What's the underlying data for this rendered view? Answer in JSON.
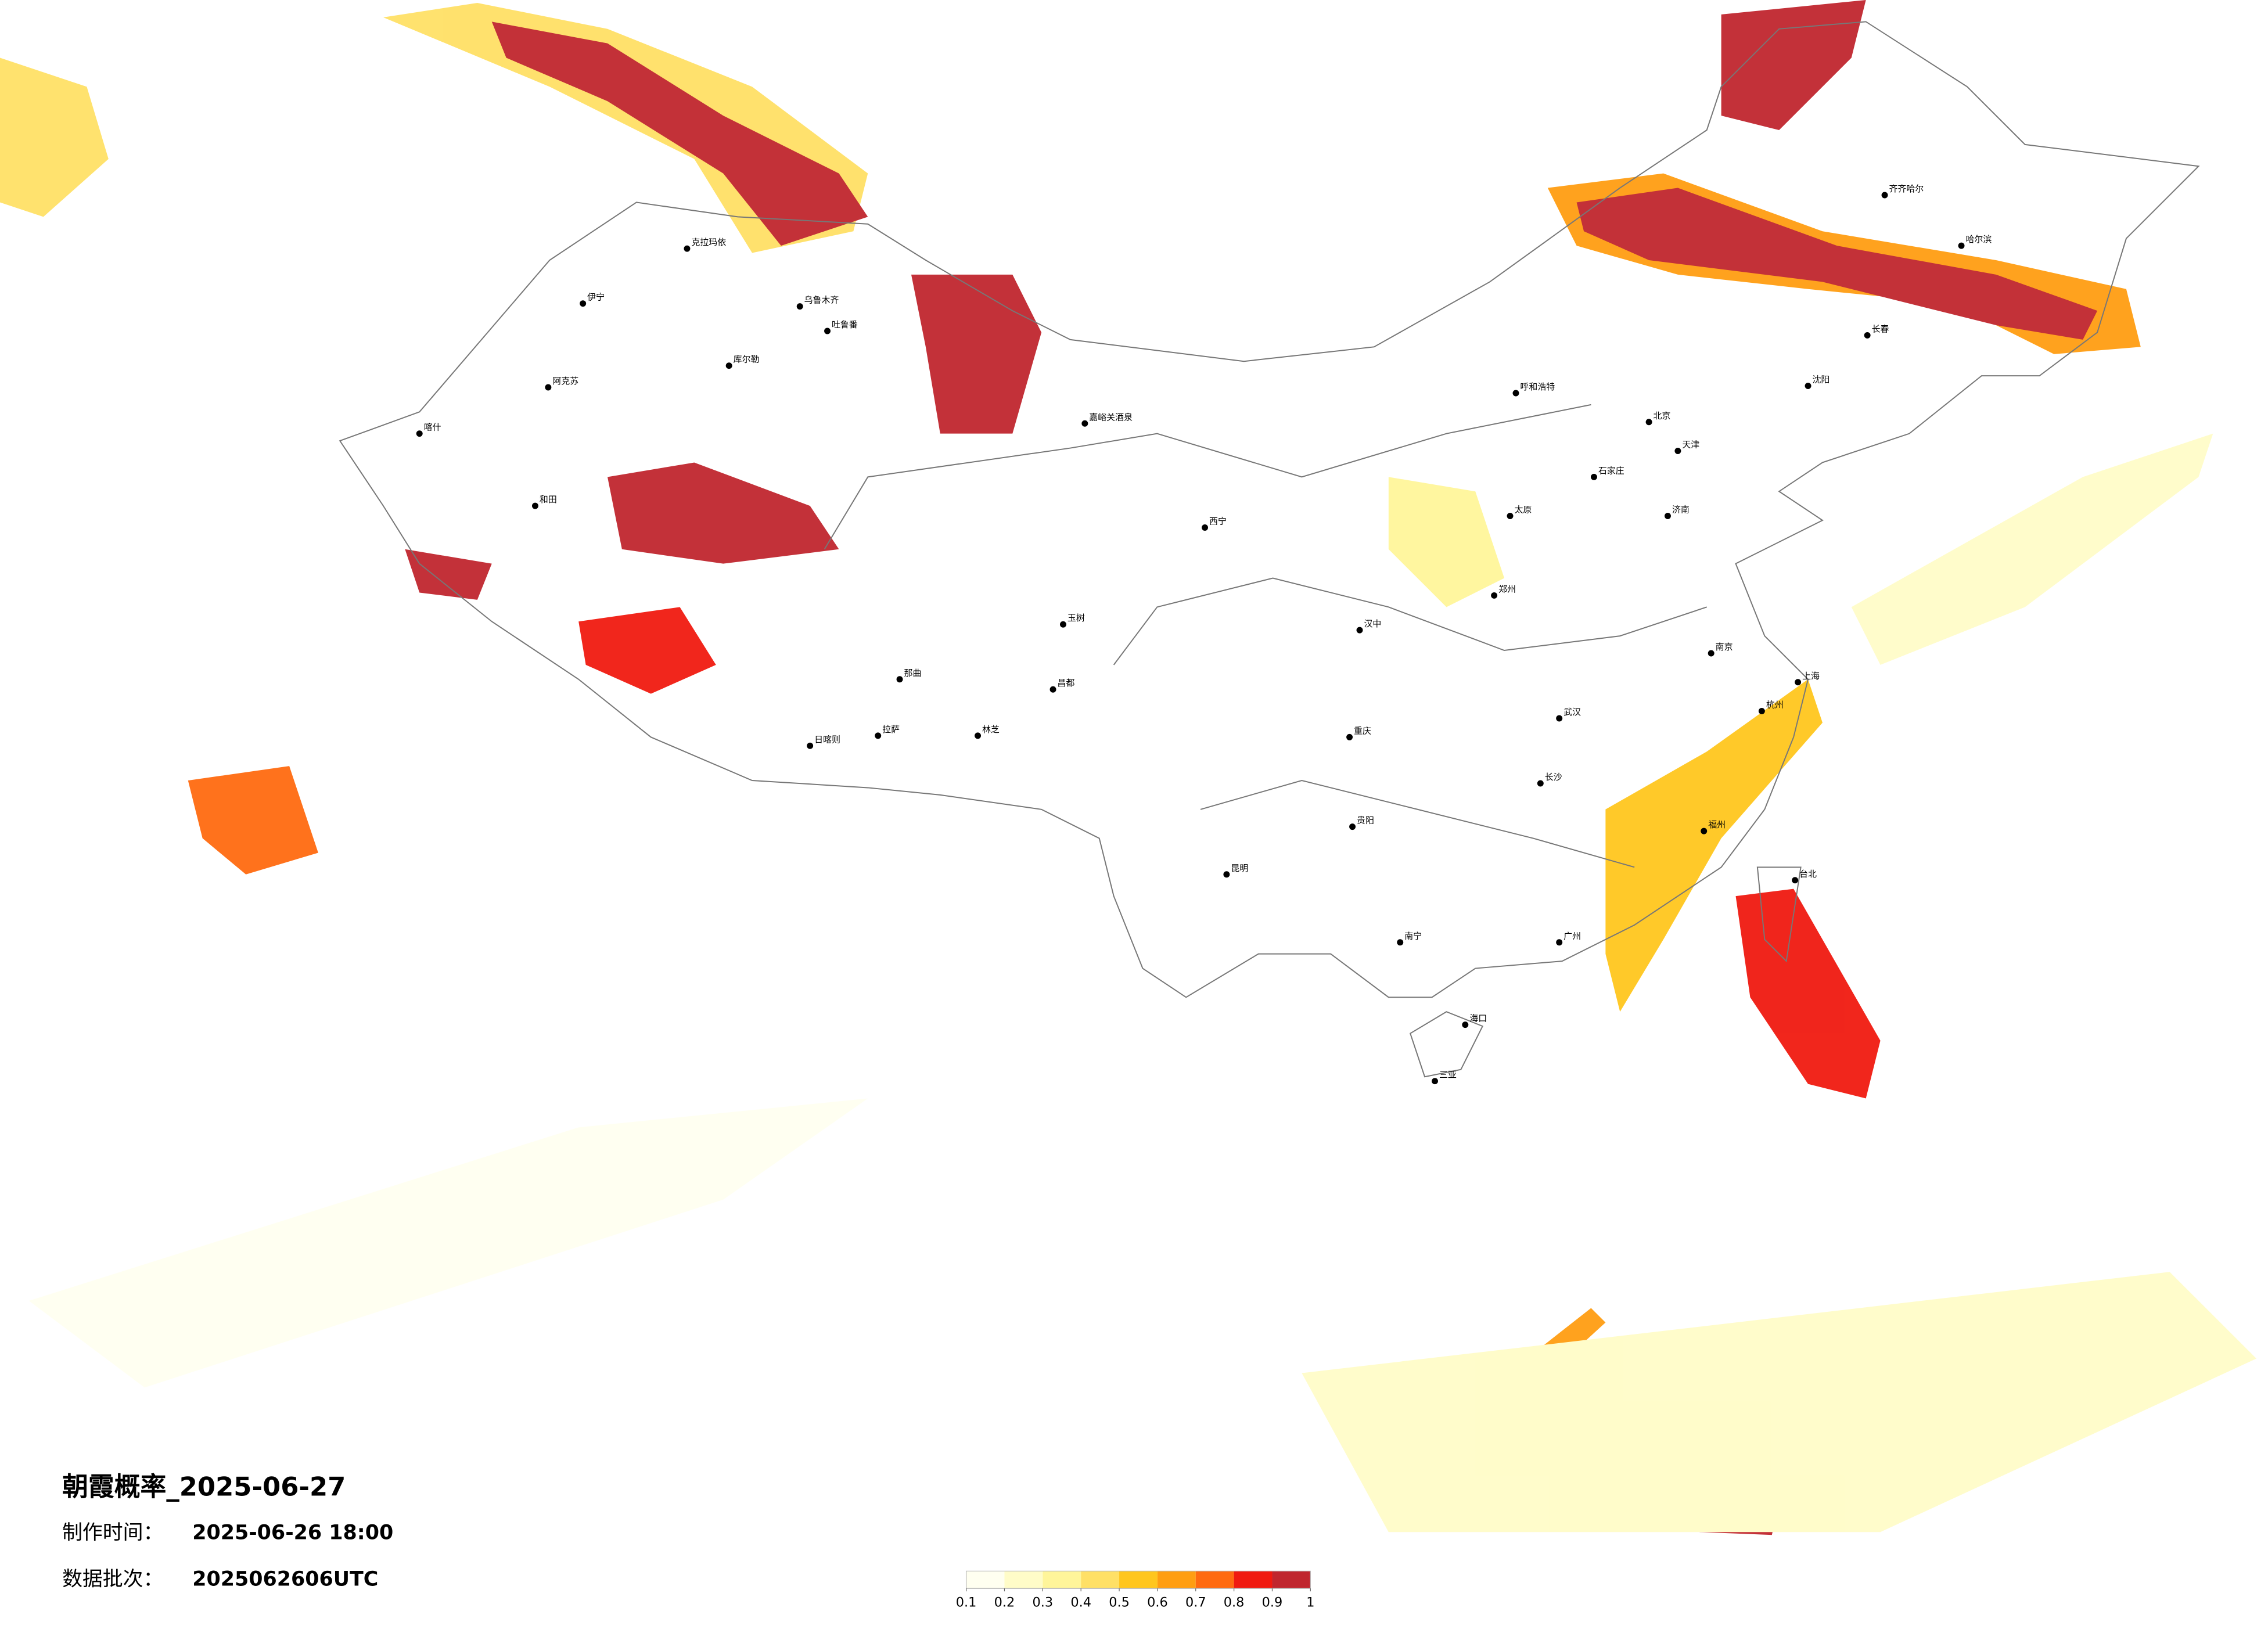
{
  "header": {
    "title": "朝霞概率_2025-06-27",
    "made_label": "制作时间：",
    "made_value": "2025-06-26 18:00",
    "batch_label": "数据批次：",
    "batch_value": "2025062606UTC"
  },
  "legend": {
    "ticks": [
      0.1,
      0.2,
      0.3,
      0.4,
      0.5,
      0.6,
      0.7,
      0.8,
      0.9,
      1
    ],
    "colors": [
      "#fffff0",
      "#fffcc8",
      "#fff59a",
      "#ffe066",
      "#ffc61e",
      "#ff9e12",
      "#ff6a10",
      "#f01a10",
      "#c0262e"
    ]
  },
  "cities": [
    "克拉玛依",
    "伊宁",
    "乌鲁木齐",
    "吐鲁番",
    "库尔勒",
    "阿克苏",
    "喀什",
    "和田",
    "嘉峪关酒泉",
    "西宁",
    "拉萨",
    "日喀则",
    "林芝",
    "那曲",
    "昌都",
    "玉树",
    "重庆",
    "贵阳",
    "昆明",
    "南宁",
    "海口",
    "三亚",
    "广州",
    "福州",
    "杭州",
    "上海",
    "南京",
    "武汉",
    "长沙",
    "郑州",
    "汉中",
    "北京",
    "天津",
    "石家庄",
    "太原",
    "济南",
    "呼和浩特",
    "沈阳",
    "长春",
    "哈尔滨",
    "齐齐哈尔",
    "台北"
  ]
}
